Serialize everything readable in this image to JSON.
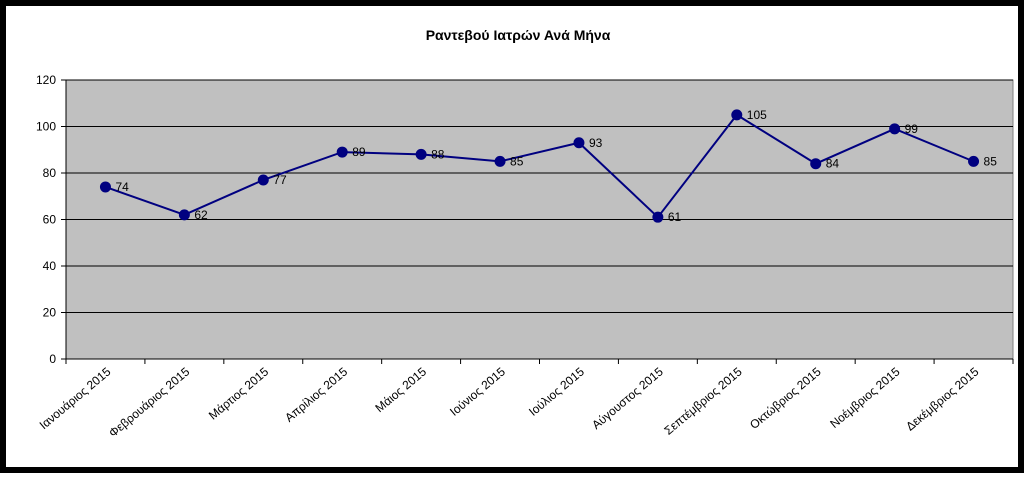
{
  "chart_data": {
    "type": "line",
    "title": "Ραντεβού Ιατρών Ανά Μήνα",
    "xlabel": "",
    "ylabel": "",
    "ylim": [
      0,
      120
    ],
    "yticks": [
      "0",
      "20",
      "40",
      "60",
      "80",
      "100",
      "120"
    ],
    "grid": true,
    "legend": "none",
    "categories": [
      "Ιανουάριος 2015",
      "Φεβρουάριος 2015",
      "Μάρτιος 2015",
      "Απρίλιος 2015",
      "Μάιος 2015",
      "Ιούνιος 2015",
      "Ιούλιος 2015",
      "Αύγουστος 2015",
      "Σεπτέμβριος 2015",
      "Οκτώβριος 2015",
      "Νοέμβριος 2015",
      "Δεκέμβριος 2015"
    ],
    "series": [
      {
        "values": [
          74,
          62,
          77,
          89,
          88,
          85,
          93,
          61,
          105,
          84,
          99,
          85
        ]
      }
    ],
    "colors": {
      "line": "#000080",
      "marker": "#000080",
      "plot_background": "#c0c0c0",
      "gridline": "#000000"
    }
  }
}
